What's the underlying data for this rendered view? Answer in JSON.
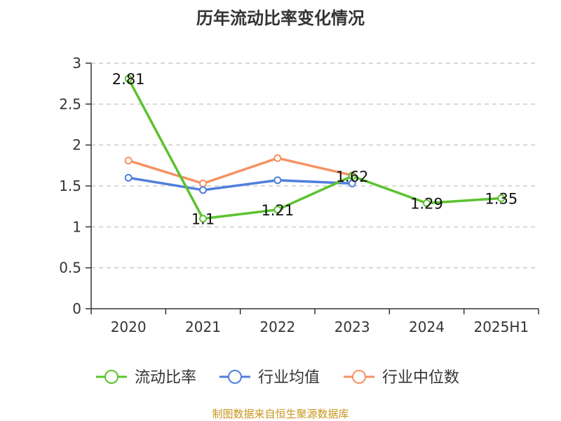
{
  "chart_data": {
    "type": "line",
    "title": "历年流动比率变化情况",
    "categories": [
      "2020",
      "2021",
      "2022",
      "2023",
      "2024",
      "2025H1"
    ],
    "y_ticks": [
      "0",
      "0.5",
      "1",
      "1.5",
      "2",
      "2.5",
      "3"
    ],
    "ylim": [
      0,
      3
    ],
    "grid": true,
    "legend_position": "bottom",
    "series": [
      {
        "name": "流动比率",
        "color": "#5cc22f",
        "values": [
          2.81,
          1.1,
          1.21,
          1.62,
          1.29,
          1.35
        ],
        "labels": [
          "2.81",
          "1.1",
          "1.21",
          "1.62",
          "1.29",
          "1.35"
        ]
      },
      {
        "name": "行业均值",
        "color": "#4f7fdc",
        "values": [
          1.6,
          1.45,
          1.57,
          1.53,
          null,
          null
        ]
      },
      {
        "name": "行业中位数",
        "color": "#f59263",
        "values": [
          1.81,
          1.53,
          1.84,
          1.63,
          null,
          null
        ]
      }
    ]
  },
  "source": "制图数据来自恒生聚源数据库"
}
